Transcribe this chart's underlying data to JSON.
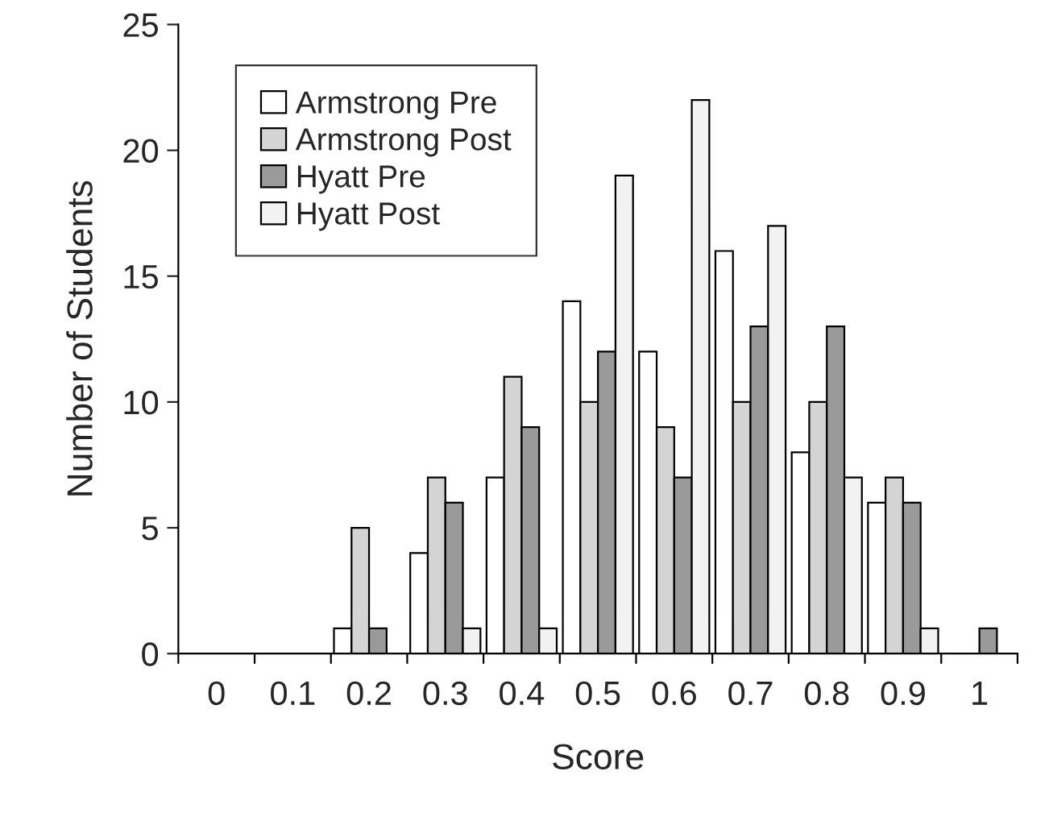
{
  "chart_data": {
    "type": "bar",
    "xlabel": "Score",
    "ylabel": "Number of Students",
    "categories": [
      "0",
      "0.1",
      "0.2",
      "0.3",
      "0.4",
      "0.5",
      "0.6",
      "0.7",
      "0.8",
      "0.9",
      "1"
    ],
    "series": [
      {
        "name": "Armstrong Pre",
        "color": "#ffffff",
        "values": [
          0,
          0,
          1,
          4,
          7,
          14,
          12,
          16,
          8,
          6,
          0
        ]
      },
      {
        "name": "Armstrong Post",
        "color": "#d4d4d4",
        "values": [
          0,
          0,
          5,
          7,
          11,
          10,
          9,
          10,
          10,
          7,
          0
        ]
      },
      {
        "name": "Hyatt Pre",
        "color": "#9a9a9a",
        "values": [
          0,
          0,
          1,
          6,
          9,
          12,
          7,
          13,
          13,
          6,
          1
        ]
      },
      {
        "name": "Hyatt Post",
        "color": "#f2f2f2",
        "values": [
          0,
          0,
          0,
          1,
          1,
          19,
          22,
          17,
          7,
          1,
          0
        ]
      }
    ],
    "ylim": [
      0,
      25
    ],
    "yticks": [
      0,
      5,
      10,
      15,
      20,
      25
    ],
    "grid": false,
    "legend": "top left"
  }
}
